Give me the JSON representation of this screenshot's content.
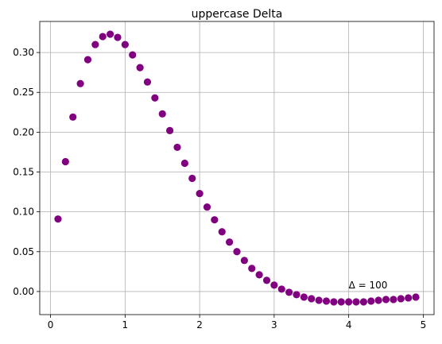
{
  "chart_data": {
    "type": "scatter",
    "title": "uppercase Delta",
    "xlabel": "",
    "ylabel": "",
    "xlim": [
      -0.145,
      5.145
    ],
    "ylim": [
      -0.029,
      0.339
    ],
    "grid": true,
    "x_ticks": [
      0,
      1,
      2,
      3,
      4,
      5
    ],
    "x_tick_labels": [
      "0",
      "1",
      "2",
      "3",
      "4",
      "5"
    ],
    "y_ticks": [
      0.0,
      0.05,
      0.1,
      0.15,
      0.2,
      0.25,
      0.3
    ],
    "y_tick_labels": [
      "0.00",
      "0.05",
      "0.10",
      "0.15",
      "0.20",
      "0.25",
      "0.30"
    ],
    "marker_color": "#800080",
    "annotation": {
      "text": "Δ = 100",
      "x": 4.0,
      "y": 0.0
    },
    "x": [
      0.1,
      0.2,
      0.3,
      0.4,
      0.5,
      0.6,
      0.7,
      0.8,
      0.9,
      1.0,
      1.1,
      1.2,
      1.3,
      1.4,
      1.5,
      1.6,
      1.7,
      1.8,
      1.9,
      2.0,
      2.1,
      2.2,
      2.3,
      2.4,
      2.5,
      2.6,
      2.7,
      2.8,
      2.9,
      3.0,
      3.1,
      3.2,
      3.3,
      3.4,
      3.5,
      3.6,
      3.7,
      3.8,
      3.9,
      4.0,
      4.1,
      4.2,
      4.3,
      4.4,
      4.5,
      4.6,
      4.7,
      4.8,
      4.9
    ],
    "y": [
      0.091,
      0.163,
      0.219,
      0.261,
      0.291,
      0.31,
      0.32,
      0.323,
      0.319,
      0.31,
      0.297,
      0.281,
      0.263,
      0.243,
      0.223,
      0.202,
      0.181,
      0.161,
      0.142,
      0.123,
      0.106,
      0.09,
      0.075,
      0.062,
      0.05,
      0.039,
      0.029,
      0.021,
      0.014,
      0.008,
      0.003,
      -0.001,
      -0.004,
      -0.007,
      -0.009,
      -0.011,
      -0.012,
      -0.013,
      -0.013,
      -0.013,
      -0.013,
      -0.013,
      -0.012,
      -0.011,
      -0.01,
      -0.01,
      -0.009,
      -0.008,
      -0.007
    ]
  }
}
